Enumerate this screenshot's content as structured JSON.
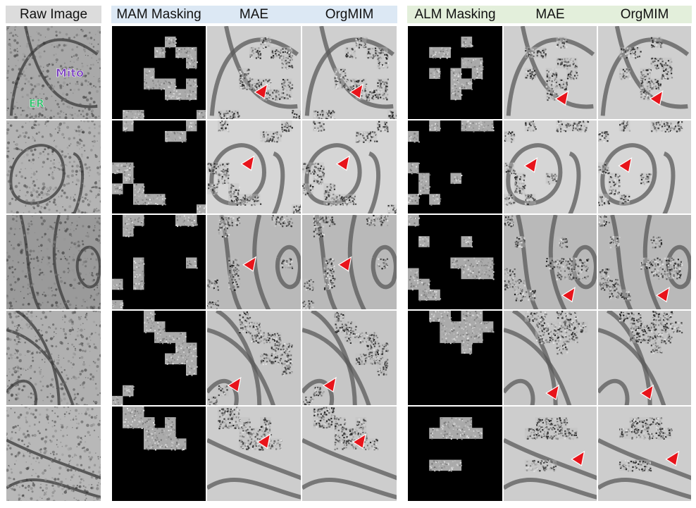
{
  "headers": {
    "raw": "Raw Image",
    "mam_masking": "MAM Masking",
    "mam_mae": "MAE",
    "mam_orgmim": "OrgMIM",
    "alm_masking": "ALM Masking",
    "alm_mae": "MAE",
    "alm_orgmim": "OrgMIM"
  },
  "labels": {
    "mito": "Mito",
    "er": "ER"
  },
  "colors": {
    "mito_label": "#7a3fbf",
    "er_label": "#2dbf6a",
    "arrow": "#e8141b",
    "mam_header_bg": "#dce8f4",
    "alm_header_bg": "#e3efdb",
    "raw_header_bg": "#dcdcdc",
    "mask_black": "#000000"
  },
  "rows": [
    {
      "mam_mask": [
        [
          0,
          0,
          0,
          0,
          0,
          0,
          0,
          0,
          0
        ],
        [
          0,
          0,
          0,
          0,
          0,
          1,
          0,
          0,
          0
        ],
        [
          0,
          0,
          0,
          0,
          1,
          0,
          1,
          1,
          0
        ],
        [
          0,
          0,
          0,
          0,
          0,
          0,
          0,
          1,
          0
        ],
        [
          0,
          0,
          0,
          1,
          0,
          0,
          0,
          0,
          0
        ],
        [
          0,
          0,
          0,
          1,
          1,
          1,
          0,
          1,
          0
        ],
        [
          0,
          0,
          0,
          0,
          0,
          1,
          1,
          1,
          0
        ],
        [
          0,
          0,
          0,
          0,
          0,
          0,
          0,
          0,
          0
        ],
        [
          0,
          1,
          1,
          0,
          0,
          0,
          0,
          0,
          1
        ]
      ],
      "alm_mask": [
        [
          0,
          0,
          0,
          0,
          0,
          0,
          0,
          0,
          0
        ],
        [
          0,
          0,
          0,
          0,
          0,
          1,
          0,
          0,
          0
        ],
        [
          0,
          0,
          1,
          1,
          0,
          0,
          0,
          0,
          0
        ],
        [
          0,
          0,
          0,
          0,
          0,
          1,
          1,
          0,
          0
        ],
        [
          0,
          0,
          1,
          0,
          1,
          0,
          1,
          0,
          0
        ],
        [
          0,
          0,
          0,
          0,
          1,
          1,
          0,
          0,
          0
        ],
        [
          0,
          0,
          0,
          0,
          1,
          0,
          0,
          0,
          0
        ],
        [
          0,
          0,
          0,
          0,
          0,
          0,
          0,
          0,
          0
        ],
        [
          0,
          0,
          0,
          0,
          0,
          0,
          0,
          0,
          0
        ]
      ]
    },
    {
      "mam_mask": [
        [
          0,
          1,
          0,
          0,
          0,
          0,
          0,
          1,
          0
        ],
        [
          0,
          0,
          0,
          0,
          0,
          1,
          1,
          0,
          0
        ],
        [
          0,
          0,
          0,
          0,
          0,
          0,
          0,
          0,
          0
        ],
        [
          0,
          0,
          0,
          0,
          0,
          0,
          0,
          0,
          0
        ],
        [
          1,
          1,
          0,
          0,
          0,
          0,
          0,
          0,
          0
        ],
        [
          0,
          1,
          0,
          0,
          0,
          0,
          0,
          0,
          0
        ],
        [
          1,
          0,
          1,
          0,
          0,
          0,
          0,
          0,
          0
        ],
        [
          0,
          0,
          1,
          1,
          1,
          0,
          0,
          0,
          0
        ],
        [
          0,
          0,
          0,
          0,
          0,
          0,
          0,
          0,
          1
        ]
      ],
      "alm_mask": [
        [
          0,
          0,
          1,
          0,
          0,
          1,
          1,
          1,
          0
        ],
        [
          1,
          0,
          0,
          0,
          0,
          0,
          0,
          0,
          0
        ],
        [
          0,
          0,
          0,
          0,
          0,
          0,
          0,
          0,
          0
        ],
        [
          0,
          0,
          0,
          0,
          0,
          0,
          0,
          0,
          0
        ],
        [
          1,
          0,
          0,
          0,
          0,
          0,
          0,
          0,
          0
        ],
        [
          0,
          1,
          0,
          0,
          1,
          0,
          0,
          0,
          0
        ],
        [
          0,
          1,
          0,
          0,
          0,
          0,
          0,
          0,
          0
        ],
        [
          1,
          0,
          1,
          0,
          0,
          0,
          0,
          0,
          0
        ],
        [
          0,
          0,
          0,
          0,
          0,
          0,
          0,
          0,
          0
        ]
      ]
    },
    {
      "mam_mask": [
        [
          0,
          1,
          1,
          0,
          0,
          0,
          1,
          1,
          0
        ],
        [
          0,
          1,
          0,
          0,
          0,
          0,
          0,
          0,
          0
        ],
        [
          0,
          0,
          0,
          0,
          0,
          0,
          0,
          0,
          0
        ],
        [
          0,
          0,
          0,
          0,
          0,
          0,
          0,
          0,
          0
        ],
        [
          0,
          0,
          1,
          0,
          0,
          0,
          0,
          1,
          0
        ],
        [
          0,
          0,
          1,
          0,
          0,
          0,
          0,
          0,
          0
        ],
        [
          1,
          0,
          1,
          0,
          0,
          0,
          0,
          0,
          0
        ],
        [
          0,
          0,
          0,
          0,
          0,
          0,
          0,
          0,
          0
        ],
        [
          1,
          0,
          0,
          0,
          0,
          0,
          0,
          0,
          0
        ]
      ],
      "alm_mask": [
        [
          1,
          0,
          0,
          0,
          0,
          0,
          0,
          0,
          0
        ],
        [
          0,
          0,
          0,
          0,
          0,
          0,
          0,
          0,
          0
        ],
        [
          0,
          1,
          0,
          0,
          0,
          1,
          0,
          0,
          0
        ],
        [
          0,
          0,
          0,
          0,
          0,
          0,
          0,
          0,
          0
        ],
        [
          0,
          0,
          0,
          0,
          1,
          1,
          1,
          1,
          0
        ],
        [
          1,
          0,
          0,
          0,
          0,
          1,
          1,
          1,
          0
        ],
        [
          1,
          1,
          0,
          0,
          0,
          0,
          0,
          0,
          0
        ],
        [
          0,
          1,
          1,
          0,
          0,
          0,
          0,
          0,
          0
        ],
        [
          0,
          0,
          0,
          0,
          0,
          0,
          0,
          0,
          0
        ]
      ]
    },
    {
      "mam_mask": [
        [
          0,
          0,
          0,
          1,
          0,
          0,
          0,
          0,
          0
        ],
        [
          0,
          0,
          0,
          1,
          1,
          0,
          0,
          0,
          0
        ],
        [
          0,
          0,
          0,
          0,
          1,
          1,
          1,
          0,
          0
        ],
        [
          0,
          0,
          0,
          0,
          0,
          0,
          1,
          1,
          0
        ],
        [
          0,
          0,
          0,
          0,
          0,
          1,
          1,
          1,
          0
        ],
        [
          0,
          0,
          0,
          0,
          0,
          0,
          0,
          1,
          0
        ],
        [
          0,
          0,
          0,
          0,
          0,
          0,
          0,
          0,
          0
        ],
        [
          0,
          1,
          0,
          0,
          0,
          0,
          0,
          0,
          0
        ],
        [
          1,
          0,
          0,
          0,
          0,
          0,
          0,
          0,
          0
        ]
      ],
      "alm_mask": [
        [
          0,
          0,
          1,
          1,
          0,
          1,
          1,
          0,
          0
        ],
        [
          0,
          0,
          0,
          1,
          1,
          1,
          1,
          1,
          0
        ],
        [
          0,
          0,
          0,
          1,
          1,
          1,
          1,
          0,
          0
        ],
        [
          0,
          0,
          0,
          0,
          0,
          1,
          0,
          0,
          0
        ],
        [
          0,
          0,
          0,
          0,
          0,
          0,
          0,
          0,
          0
        ],
        [
          0,
          0,
          0,
          0,
          0,
          0,
          0,
          0,
          0
        ],
        [
          0,
          0,
          0,
          0,
          0,
          0,
          0,
          0,
          0
        ],
        [
          0,
          0,
          0,
          0,
          0,
          0,
          0,
          0,
          0
        ],
        [
          0,
          0,
          0,
          0,
          0,
          0,
          0,
          0,
          0
        ]
      ]
    },
    {
      "mam_mask": [
        [
          0,
          1,
          1,
          0,
          0,
          0,
          0,
          0,
          0
        ],
        [
          0,
          1,
          1,
          1,
          0,
          1,
          0,
          0,
          0
        ],
        [
          0,
          0,
          0,
          1,
          1,
          1,
          0,
          0,
          0
        ],
        [
          0,
          0,
          0,
          1,
          1,
          1,
          1,
          0,
          0
        ],
        [
          0,
          0,
          0,
          0,
          0,
          0,
          0,
          0,
          0
        ],
        [
          0,
          0,
          0,
          0,
          0,
          0,
          0,
          0,
          0
        ],
        [
          0,
          0,
          0,
          0,
          0,
          0,
          0,
          0,
          0
        ],
        [
          0,
          0,
          0,
          0,
          0,
          0,
          0,
          0,
          0
        ],
        [
          0,
          0,
          0,
          0,
          0,
          0,
          0,
          0,
          0
        ]
      ],
      "alm_mask": [
        [
          0,
          0,
          0,
          0,
          0,
          0,
          0,
          0,
          0
        ],
        [
          0,
          0,
          0,
          1,
          1,
          1,
          0,
          0,
          0
        ],
        [
          0,
          0,
          1,
          1,
          1,
          1,
          1,
          0,
          0
        ],
        [
          0,
          0,
          0,
          0,
          0,
          0,
          0,
          0,
          0
        ],
        [
          0,
          0,
          0,
          0,
          0,
          0,
          0,
          0,
          0
        ],
        [
          0,
          0,
          1,
          1,
          1,
          0,
          0,
          0,
          0
        ],
        [
          0,
          0,
          0,
          0,
          0,
          0,
          0,
          0,
          0
        ],
        [
          0,
          0,
          0,
          0,
          0,
          0,
          0,
          0,
          0
        ],
        [
          0,
          0,
          0,
          0,
          0,
          0,
          0,
          0,
          0
        ]
      ]
    }
  ]
}
